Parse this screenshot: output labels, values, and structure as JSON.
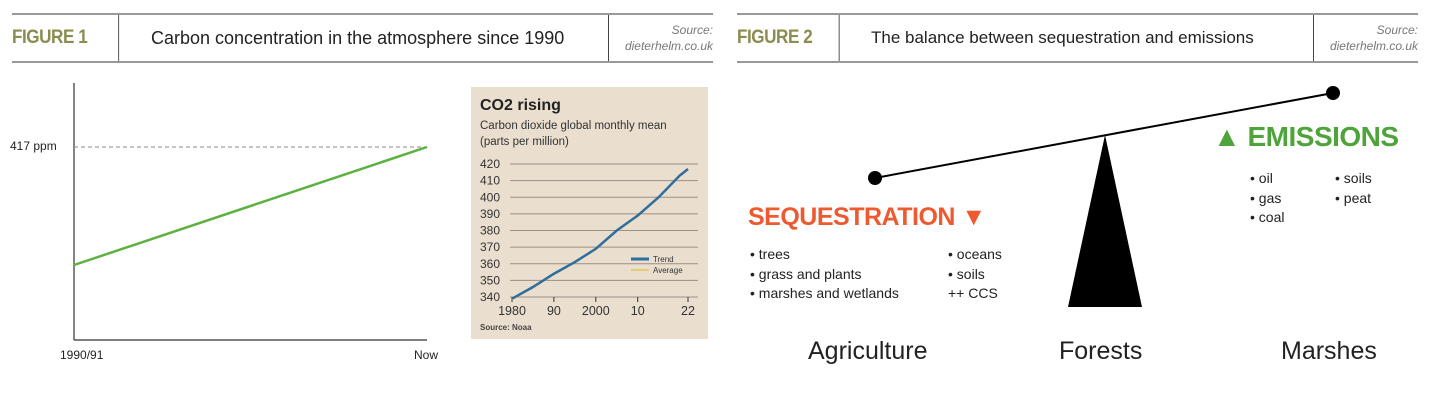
{
  "figure1": {
    "label": "FIGURE 1",
    "title": "Carbon concentration in the atmosphere since 1990",
    "source_line1": "Source:",
    "source_line2": "dieterhelm.co.uk",
    "y_marker_label": "417 ppm",
    "x_start_label": "1990/91",
    "x_end_label": "Now",
    "line_color": "#5cb241"
  },
  "figure2": {
    "label": "FIGURE 2",
    "title": "The balance between sequestration and emissions",
    "source_line1": "Source:",
    "source_line2": "dieterhelm.co.uk",
    "sequestration": {
      "title": "SEQUESTRATION ▼",
      "color": "#ee5a2f",
      "col1": [
        "• trees",
        "• grass and plants",
        "• marshes and wetlands"
      ],
      "col2": [
        "• oceans",
        "• soils",
        "++ CCS"
      ]
    },
    "emissions": {
      "title": "▲ EMISSIONS",
      "color": "#4ea43a",
      "col1": [
        "• oil",
        "• gas",
        "• coal"
      ],
      "col2": [
        "• soils",
        "• peat"
      ]
    },
    "categories": [
      "Agriculture",
      "Forests",
      "Marshes"
    ]
  },
  "chart_data": {
    "type": "line",
    "title": "CO2 rising",
    "subtitle": "Carbon dioxide global monthly mean",
    "subtitle2": "(parts per million)",
    "source": "Source: Noaa",
    "x_ticks": [
      "1980",
      "90",
      "2000",
      "10",
      "22"
    ],
    "x_tick_values": [
      1980,
      1990,
      2000,
      2010,
      2022
    ],
    "y_ticks": [
      "420",
      "410",
      "400",
      "390",
      "380",
      "370",
      "360",
      "350",
      "340"
    ],
    "ylim": [
      340,
      420
    ],
    "xlim": [
      1980,
      2022
    ],
    "grid": true,
    "legend": "right",
    "series": [
      {
        "name": "Trend",
        "color": "#2f6e9e",
        "x": [
          1980,
          1985,
          1990,
          1995,
          2000,
          2005,
          2010,
          2015,
          2020,
          2022
        ],
        "y": [
          339,
          346,
          354,
          361,
          369,
          380,
          389,
          400,
          413,
          417
        ]
      },
      {
        "name": "Average",
        "color": "#e1c35a",
        "x": [
          1980,
          1985,
          1990,
          1995,
          2000,
          2005,
          2010,
          2015,
          2020,
          2022
        ],
        "y": [
          338.5,
          345.5,
          353.5,
          360.5,
          368.5,
          379.5,
          388.5,
          399.5,
          412.5,
          416.5
        ]
      }
    ]
  }
}
